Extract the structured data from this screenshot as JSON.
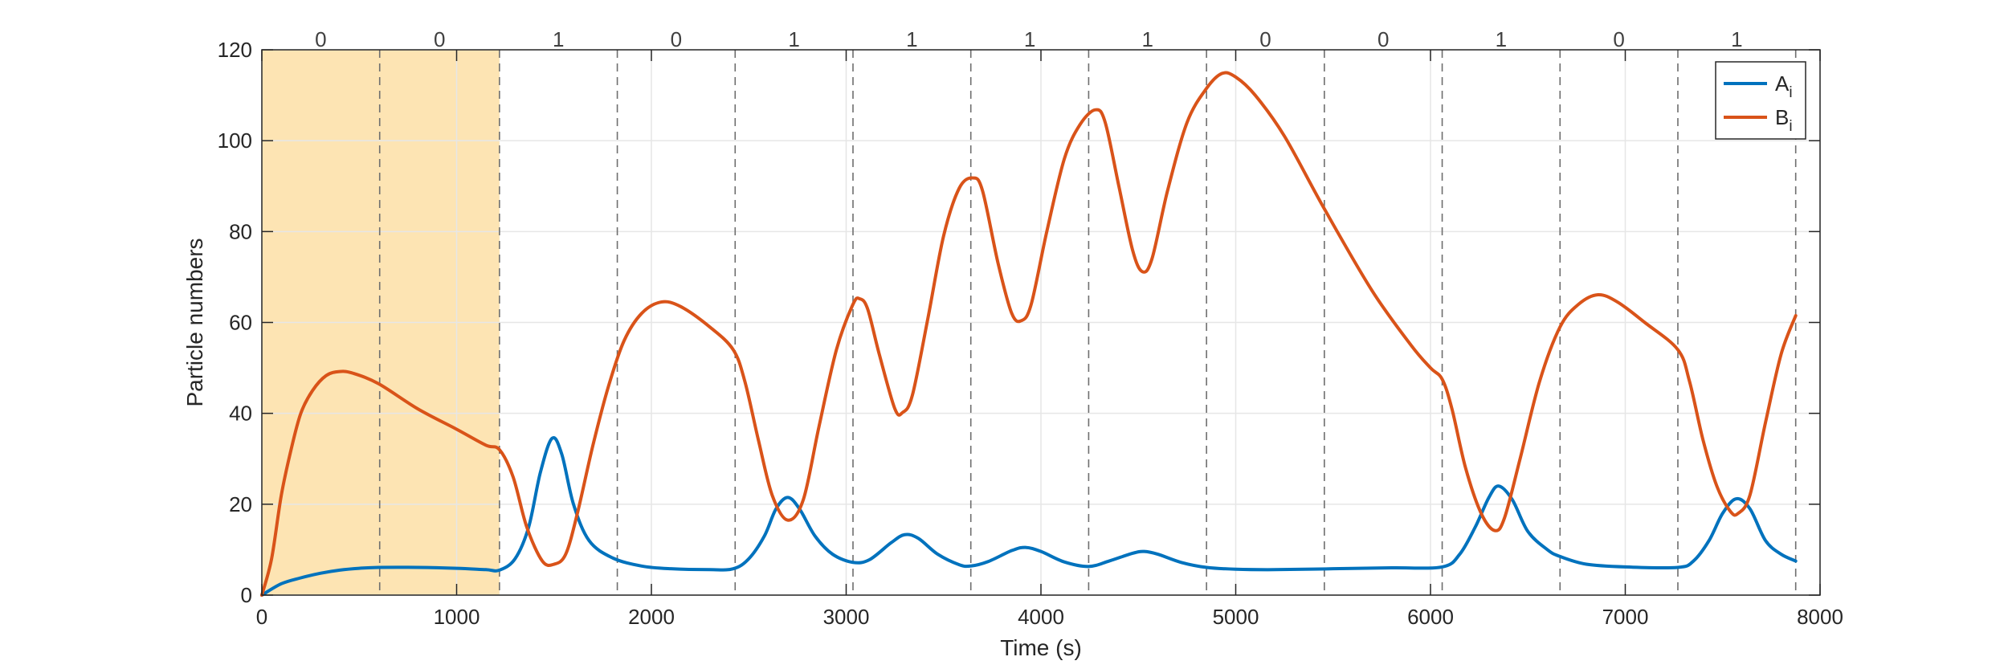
{
  "chart_data": {
    "type": "line",
    "title": "",
    "xlabel": "Time (s)",
    "ylabel": "Particle numbers",
    "xlim": [
      0,
      8000
    ],
    "ylim": [
      0,
      120
    ],
    "xticks": [
      0,
      1000,
      2000,
      3000,
      4000,
      5000,
      6000,
      7000,
      8000
    ],
    "yticks": [
      0,
      20,
      40,
      60,
      80,
      100,
      120
    ],
    "grid": true,
    "legend_position": "top-right",
    "highlight_region": {
      "x": [
        0,
        1220
      ],
      "color": "#fde4b3"
    },
    "bit_boundaries": [
      0,
      605,
      1220,
      1825,
      2430,
      3035,
      3640,
      4245,
      4850,
      5455,
      6060,
      6665,
      7270,
      7875
    ],
    "bits": [
      "0",
      "0",
      "1",
      "0",
      "1",
      "1",
      "1",
      "1",
      "0",
      "0",
      "1",
      "0",
      "1"
    ],
    "series": [
      {
        "name": "A",
        "subscript": "i",
        "color": "#0072bd",
        "points": [
          [
            0,
            0
          ],
          [
            100,
            2.5
          ],
          [
            200,
            3.8
          ],
          [
            300,
            4.8
          ],
          [
            400,
            5.5
          ],
          [
            500,
            5.9
          ],
          [
            600,
            6.1
          ],
          [
            800,
            6.1
          ],
          [
            1000,
            5.9
          ],
          [
            1150,
            5.6
          ],
          [
            1220,
            5.5
          ],
          [
            1300,
            8
          ],
          [
            1370,
            15
          ],
          [
            1430,
            27
          ],
          [
            1490,
            34.5
          ],
          [
            1540,
            31
          ],
          [
            1600,
            20
          ],
          [
            1680,
            12
          ],
          [
            1800,
            8.2
          ],
          [
            1950,
            6.4
          ],
          [
            2100,
            5.8
          ],
          [
            2300,
            5.6
          ],
          [
            2420,
            5.8
          ],
          [
            2500,
            8
          ],
          [
            2580,
            13
          ],
          [
            2640,
            19
          ],
          [
            2700,
            21.5
          ],
          [
            2760,
            19
          ],
          [
            2840,
            13
          ],
          [
            2930,
            9
          ],
          [
            3035,
            7.2
          ],
          [
            3120,
            7.8
          ],
          [
            3230,
            11.5
          ],
          [
            3300,
            13.3
          ],
          [
            3370,
            12.5
          ],
          [
            3470,
            9
          ],
          [
            3580,
            6.7
          ],
          [
            3640,
            6.4
          ],
          [
            3730,
            7.4
          ],
          [
            3850,
            9.8
          ],
          [
            3920,
            10.5
          ],
          [
            4000,
            9.6
          ],
          [
            4120,
            7.3
          ],
          [
            4245,
            6.3
          ],
          [
            4350,
            7.5
          ],
          [
            4470,
            9.2
          ],
          [
            4530,
            9.6
          ],
          [
            4600,
            9
          ],
          [
            4720,
            7.2
          ],
          [
            4850,
            6.1
          ],
          [
            5000,
            5.7
          ],
          [
            5200,
            5.6
          ],
          [
            5500,
            5.8
          ],
          [
            5800,
            6
          ],
          [
            6060,
            6.2
          ],
          [
            6150,
            9
          ],
          [
            6230,
            15
          ],
          [
            6300,
            21.5
          ],
          [
            6350,
            24
          ],
          [
            6420,
            21
          ],
          [
            6500,
            14
          ],
          [
            6600,
            10
          ],
          [
            6665,
            8.5
          ],
          [
            6800,
            6.8
          ],
          [
            7000,
            6.2
          ],
          [
            7270,
            6.1
          ],
          [
            7350,
            7.5
          ],
          [
            7430,
            12
          ],
          [
            7500,
            18
          ],
          [
            7570,
            21.2
          ],
          [
            7640,
            19
          ],
          [
            7720,
            12
          ],
          [
            7800,
            9
          ],
          [
            7875,
            7.5
          ]
        ]
      },
      {
        "name": "B",
        "subscript": "i",
        "color": "#d95319",
        "points": [
          [
            0,
            0
          ],
          [
            50,
            8
          ],
          [
            100,
            22
          ],
          [
            150,
            32
          ],
          [
            200,
            40
          ],
          [
            260,
            45
          ],
          [
            330,
            48.3
          ],
          [
            400,
            49.2
          ],
          [
            470,
            48.8
          ],
          [
            600,
            46.5
          ],
          [
            800,
            41
          ],
          [
            1000,
            36.5
          ],
          [
            1150,
            33
          ],
          [
            1220,
            32
          ],
          [
            1290,
            26
          ],
          [
            1360,
            15
          ],
          [
            1440,
            7.5
          ],
          [
            1500,
            6.8
          ],
          [
            1560,
            9
          ],
          [
            1620,
            18
          ],
          [
            1700,
            33
          ],
          [
            1780,
            46
          ],
          [
            1860,
            56
          ],
          [
            1950,
            62
          ],
          [
            2050,
            64.5
          ],
          [
            2150,
            63.5
          ],
          [
            2300,
            59
          ],
          [
            2420,
            54
          ],
          [
            2480,
            47
          ],
          [
            2550,
            34
          ],
          [
            2620,
            22
          ],
          [
            2700,
            16.5
          ],
          [
            2780,
            21
          ],
          [
            2860,
            37
          ],
          [
            2950,
            54
          ],
          [
            3035,
            64
          ],
          [
            3070,
            65.2
          ],
          [
            3110,
            63
          ],
          [
            3170,
            53
          ],
          [
            3250,
            41
          ],
          [
            3290,
            40.2
          ],
          [
            3340,
            44
          ],
          [
            3420,
            61
          ],
          [
            3500,
            79
          ],
          [
            3580,
            89.5
          ],
          [
            3650,
            91.8
          ],
          [
            3700,
            89
          ],
          [
            3780,
            73
          ],
          [
            3850,
            62
          ],
          [
            3900,
            60.4
          ],
          [
            3950,
            64
          ],
          [
            4030,
            80
          ],
          [
            4120,
            96
          ],
          [
            4200,
            103.5
          ],
          [
            4280,
            106.8
          ],
          [
            4330,
            104
          ],
          [
            4400,
            90
          ],
          [
            4470,
            76
          ],
          [
            4520,
            71.2
          ],
          [
            4570,
            74
          ],
          [
            4650,
            89
          ],
          [
            4750,
            104
          ],
          [
            4850,
            111.5
          ],
          [
            4930,
            114.8
          ],
          [
            5000,
            114
          ],
          [
            5100,
            110
          ],
          [
            5250,
            101
          ],
          [
            5455,
            85
          ],
          [
            5700,
            67
          ],
          [
            5900,
            55
          ],
          [
            6000,
            50
          ],
          [
            6060,
            47.5
          ],
          [
            6110,
            41
          ],
          [
            6180,
            28
          ],
          [
            6260,
            18
          ],
          [
            6330,
            14.2
          ],
          [
            6380,
            17
          ],
          [
            6460,
            30
          ],
          [
            6560,
            47
          ],
          [
            6665,
            59
          ],
          [
            6760,
            64
          ],
          [
            6860,
            66.1
          ],
          [
            6960,
            64.5
          ],
          [
            7100,
            60
          ],
          [
            7270,
            54
          ],
          [
            7330,
            47
          ],
          [
            7400,
            34
          ],
          [
            7470,
            24
          ],
          [
            7540,
            18.4
          ],
          [
            7580,
            18
          ],
          [
            7640,
            22
          ],
          [
            7720,
            38
          ],
          [
            7800,
            53
          ],
          [
            7875,
            61.5
          ]
        ]
      }
    ]
  }
}
